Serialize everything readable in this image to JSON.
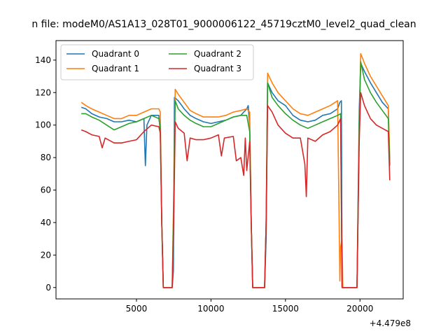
{
  "chart_data": {
    "type": "line",
    "title": "n file: modeM0/AS1A13_028T01_9000006122_45719cztM0_level2_quad_clean",
    "x_offset_label": "+4.479e8",
    "xlim": [
      -400,
      22900
    ],
    "ylim": [
      -7,
      152
    ],
    "xticks": [
      5000,
      10000,
      15000,
      20000
    ],
    "yticks": [
      0,
      20,
      40,
      60,
      80,
      100,
      120,
      140
    ],
    "legend": {
      "placement": "top-left",
      "columns": 2
    },
    "grid": false,
    "series": [
      {
        "name": "Quadrant 0",
        "color": "#1f77b4",
        "points": [
          [
            1300,
            111
          ],
          [
            1600,
            110
          ],
          [
            2000,
            107
          ],
          [
            2500,
            105
          ],
          [
            3000,
            104
          ],
          [
            3500,
            102
          ],
          [
            4000,
            102
          ],
          [
            4500,
            103
          ],
          [
            5000,
            102
          ],
          [
            5500,
            104
          ],
          [
            5550,
            88
          ],
          [
            5600,
            75
          ],
          [
            5700,
            100
          ],
          [
            6000,
            106
          ],
          [
            6500,
            106
          ],
          [
            6600,
            96
          ],
          [
            6700,
            40
          ],
          [
            6800,
            0
          ],
          [
            7400,
            0
          ],
          [
            7480,
            10
          ],
          [
            7550,
            117
          ],
          [
            7800,
            115
          ],
          [
            8200,
            110
          ],
          [
            8600,
            106
          ],
          [
            9000,
            104
          ],
          [
            9500,
            102
          ],
          [
            10000,
            101
          ],
          [
            10500,
            102
          ],
          [
            11000,
            103
          ],
          [
            11500,
            105
          ],
          [
            12000,
            106
          ],
          [
            12400,
            110
          ],
          [
            12500,
            112
          ],
          [
            12600,
            100
          ],
          [
            12700,
            40
          ],
          [
            12800,
            0
          ],
          [
            13600,
            0
          ],
          [
            13700,
            30
          ],
          [
            13800,
            126
          ],
          [
            14100,
            120
          ],
          [
            14500,
            115
          ],
          [
            15000,
            112
          ],
          [
            15500,
            106
          ],
          [
            16000,
            103
          ],
          [
            16500,
            102
          ],
          [
            17000,
            103
          ],
          [
            17500,
            106
          ],
          [
            18000,
            107
          ],
          [
            18500,
            110
          ],
          [
            18650,
            114
          ],
          [
            18750,
            115
          ],
          [
            18800,
            0
          ],
          [
            19800,
            0
          ],
          [
            19950,
            110
          ],
          [
            20050,
            138
          ],
          [
            20300,
            133
          ],
          [
            20700,
            126
          ],
          [
            21100,
            120
          ],
          [
            21500,
            114
          ],
          [
            21900,
            110
          ],
          [
            22000,
            76
          ]
        ]
      },
      {
        "name": "Quadrant 1",
        "color": "#ff7f0e",
        "points": [
          [
            1300,
            114
          ],
          [
            1600,
            112
          ],
          [
            2000,
            110
          ],
          [
            2500,
            108
          ],
          [
            3000,
            106
          ],
          [
            3500,
            104
          ],
          [
            4000,
            104
          ],
          [
            4500,
            106
          ],
          [
            5000,
            106
          ],
          [
            5500,
            108
          ],
          [
            6000,
            110
          ],
          [
            6500,
            110
          ],
          [
            6600,
            108
          ],
          [
            6700,
            40
          ],
          [
            6800,
            0
          ],
          [
            7400,
            0
          ],
          [
            7500,
            60
          ],
          [
            7600,
            122
          ],
          [
            7800,
            119
          ],
          [
            8200,
            114
          ],
          [
            8600,
            109
          ],
          [
            9000,
            107
          ],
          [
            9500,
            105
          ],
          [
            10000,
            105
          ],
          [
            10500,
            105
          ],
          [
            11000,
            106
          ],
          [
            11500,
            108
          ],
          [
            12000,
            109
          ],
          [
            12400,
            110
          ],
          [
            12600,
            108
          ],
          [
            12700,
            40
          ],
          [
            12800,
            0
          ],
          [
            13600,
            0
          ],
          [
            13700,
            40
          ],
          [
            13800,
            132
          ],
          [
            14100,
            126
          ],
          [
            14500,
            120
          ],
          [
            15000,
            115
          ],
          [
            15500,
            110
          ],
          [
            16000,
            107
          ],
          [
            16500,
            106
          ],
          [
            17000,
            108
          ],
          [
            17500,
            110
          ],
          [
            18000,
            112
          ],
          [
            18500,
            115
          ],
          [
            18600,
            40
          ],
          [
            18650,
            4
          ],
          [
            18700,
            25
          ],
          [
            18800,
            30
          ],
          [
            18850,
            0
          ],
          [
            19800,
            0
          ],
          [
            19950,
            100
          ],
          [
            20050,
            144
          ],
          [
            20300,
            138
          ],
          [
            20700,
            130
          ],
          [
            21100,
            124
          ],
          [
            21500,
            118
          ],
          [
            21900,
            112
          ],
          [
            22000,
            80
          ]
        ]
      },
      {
        "name": "Quadrant 2",
        "color": "#2ca02c",
        "points": [
          [
            1300,
            107
          ],
          [
            1600,
            107
          ],
          [
            2000,
            105
          ],
          [
            2500,
            103
          ],
          [
            3000,
            100
          ],
          [
            3500,
            97
          ],
          [
            4000,
            99
          ],
          [
            4500,
            101
          ],
          [
            5000,
            102
          ],
          [
            5500,
            104
          ],
          [
            6000,
            106
          ],
          [
            6500,
            104
          ],
          [
            6600,
            98
          ],
          [
            6700,
            40
          ],
          [
            6800,
            0
          ],
          [
            7400,
            0
          ],
          [
            7500,
            50
          ],
          [
            7600,
            115
          ],
          [
            7800,
            110
          ],
          [
            8200,
            106
          ],
          [
            8600,
            103
          ],
          [
            9000,
            101
          ],
          [
            9500,
            99
          ],
          [
            10000,
            99
          ],
          [
            10500,
            101
          ],
          [
            11000,
            103
          ],
          [
            11500,
            105
          ],
          [
            12000,
            106
          ],
          [
            12400,
            106
          ],
          [
            12600,
            96
          ],
          [
            12700,
            40
          ],
          [
            12800,
            0
          ],
          [
            13600,
            0
          ],
          [
            13700,
            40
          ],
          [
            13800,
            126
          ],
          [
            14100,
            117
          ],
          [
            14500,
            112
          ],
          [
            15000,
            107
          ],
          [
            15500,
            103
          ],
          [
            16000,
            100
          ],
          [
            16500,
            98
          ],
          [
            17000,
            100
          ],
          [
            17500,
            102
          ],
          [
            18000,
            104
          ],
          [
            18500,
            106
          ],
          [
            18700,
            107
          ],
          [
            18800,
            0
          ],
          [
            19800,
            0
          ],
          [
            19950,
            100
          ],
          [
            20050,
            139
          ],
          [
            20300,
            128
          ],
          [
            20700,
            120
          ],
          [
            21100,
            114
          ],
          [
            21500,
            109
          ],
          [
            21900,
            104
          ],
          [
            22000,
            75
          ]
        ]
      },
      {
        "name": "Quadrant 3",
        "color": "#d62728",
        "points": [
          [
            1300,
            97
          ],
          [
            1600,
            96
          ],
          [
            2000,
            94
          ],
          [
            2500,
            93
          ],
          [
            2700,
            86
          ],
          [
            2900,
            92
          ],
          [
            3500,
            89
          ],
          [
            4000,
            89
          ],
          [
            4500,
            90
          ],
          [
            5000,
            91
          ],
          [
            5500,
            96
          ],
          [
            6000,
            100
          ],
          [
            6500,
            99
          ],
          [
            6600,
            95
          ],
          [
            6700,
            40
          ],
          [
            6800,
            0
          ],
          [
            7400,
            0
          ],
          [
            7500,
            40
          ],
          [
            7600,
            102
          ],
          [
            7800,
            98
          ],
          [
            8200,
            95
          ],
          [
            8400,
            78
          ],
          [
            8600,
            92
          ],
          [
            9000,
            91
          ],
          [
            9500,
            91
          ],
          [
            10000,
            92
          ],
          [
            10500,
            94
          ],
          [
            10700,
            81
          ],
          [
            10900,
            92
          ],
          [
            11500,
            93
          ],
          [
            11700,
            78
          ],
          [
            12000,
            80
          ],
          [
            12200,
            69
          ],
          [
            12300,
            92
          ],
          [
            12400,
            72
          ],
          [
            12500,
            81
          ],
          [
            12600,
            90
          ],
          [
            12700,
            40
          ],
          [
            12800,
            0
          ],
          [
            13600,
            0
          ],
          [
            13700,
            40
          ],
          [
            13800,
            112
          ],
          [
            14100,
            108
          ],
          [
            14500,
            100
          ],
          [
            15000,
            95
          ],
          [
            15500,
            92
          ],
          [
            16000,
            92
          ],
          [
            16300,
            76
          ],
          [
            16400,
            56
          ],
          [
            16500,
            92
          ],
          [
            17000,
            90
          ],
          [
            17500,
            94
          ],
          [
            18000,
            96
          ],
          [
            18500,
            100
          ],
          [
            18700,
            104
          ],
          [
            18800,
            0
          ],
          [
            19800,
            0
          ],
          [
            19950,
            90
          ],
          [
            20050,
            120
          ],
          [
            20300,
            112
          ],
          [
            20700,
            104
          ],
          [
            21100,
            100
          ],
          [
            21500,
            98
          ],
          [
            21900,
            96
          ],
          [
            22000,
            66
          ]
        ]
      }
    ]
  }
}
